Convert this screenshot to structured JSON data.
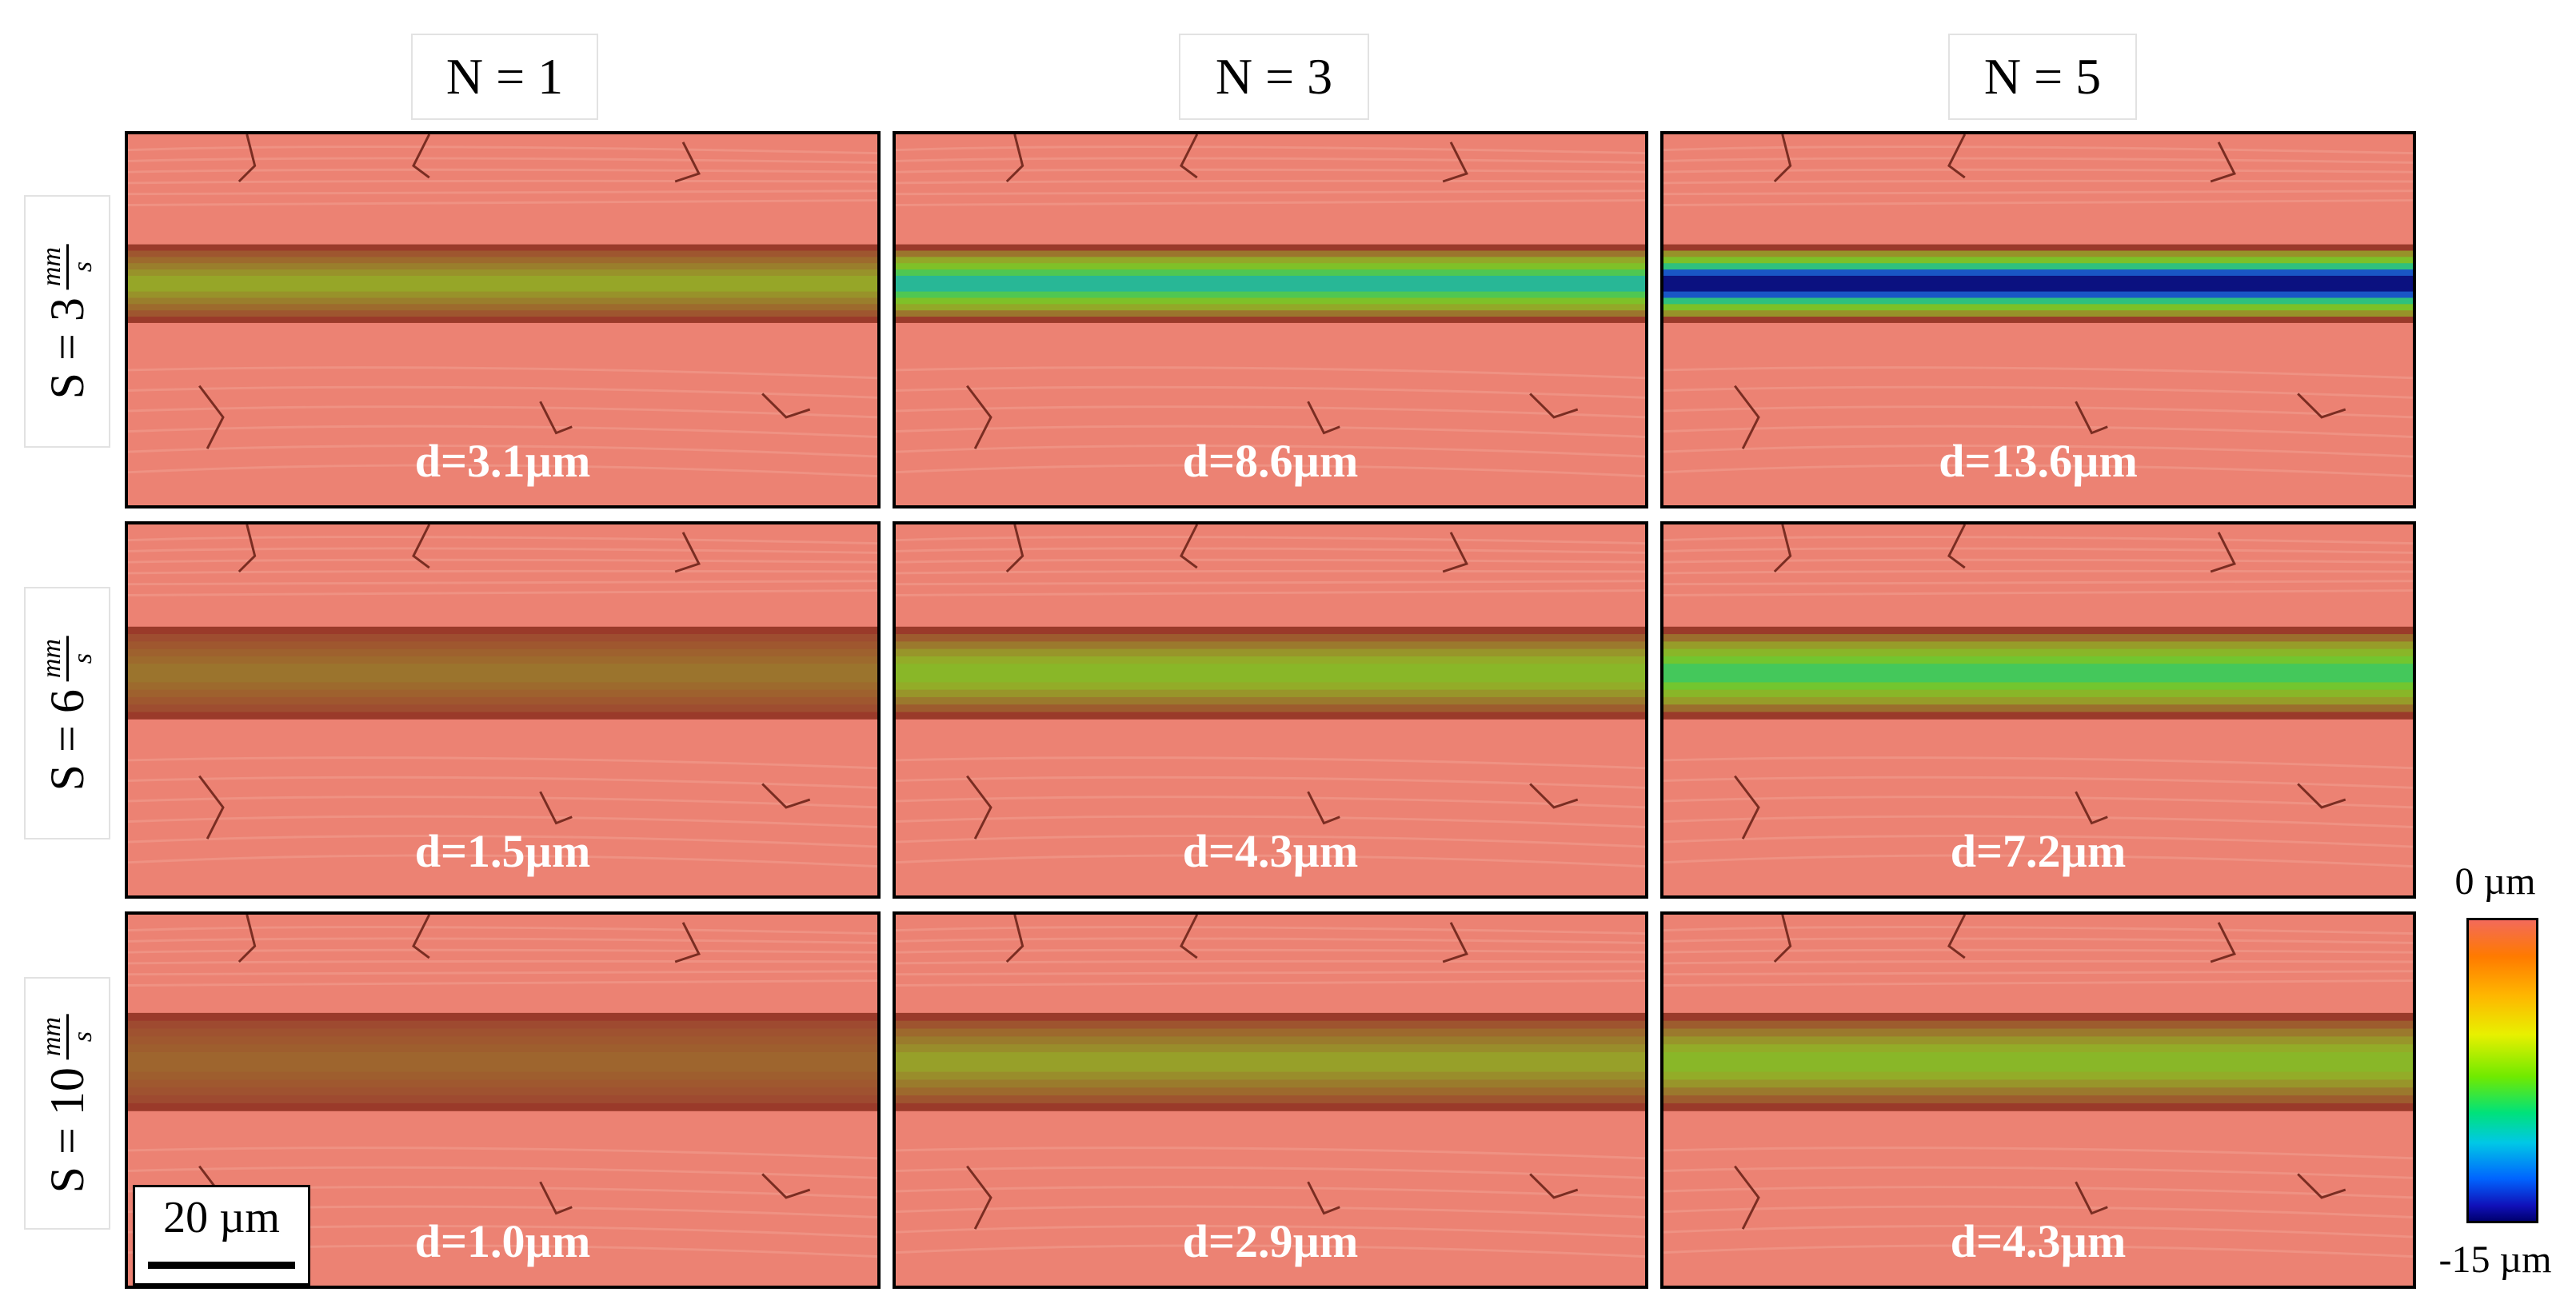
{
  "columns": [
    {
      "label": "N = 1"
    },
    {
      "label": "N = 3"
    },
    {
      "label": "N = 5"
    }
  ],
  "rows": [
    {
      "prefix": "S = 3",
      "unit_num": "mm",
      "unit_den": "s"
    },
    {
      "prefix": "S = 6",
      "unit_num": "mm",
      "unit_den": "s"
    },
    {
      "prefix": "S = 10",
      "unit_num": "mm",
      "unit_den": "s"
    }
  ],
  "panels": [
    {
      "depth_label": "d=3.1µm",
      "depth_um": 3.1
    },
    {
      "depth_label": "d=8.6µm",
      "depth_um": 8.6
    },
    {
      "depth_label": "d=13.6µm",
      "depth_um": 13.6
    },
    {
      "depth_label": "d=1.5µm",
      "depth_um": 1.5
    },
    {
      "depth_label": "d=4.3µm",
      "depth_um": 4.3
    },
    {
      "depth_label": "d=7.2µm",
      "depth_um": 7.2
    },
    {
      "depth_label": "d=1.0µm",
      "depth_um": 1.0
    },
    {
      "depth_label": "d=2.9µm",
      "depth_um": 2.9
    },
    {
      "depth_label": "d=4.3µm",
      "depth_um": 4.3
    }
  ],
  "scale_bar": {
    "label": "20 µm"
  },
  "colorbar": {
    "top_label": "0 µm",
    "bottom_label": "-15 µm",
    "min_um": -15,
    "max_um": 0
  },
  "colors": {
    "surface": "#ec8273",
    "rim": "#9a3a2a",
    "mid": "#7fc62a",
    "deep": "#1a2fd0"
  }
}
